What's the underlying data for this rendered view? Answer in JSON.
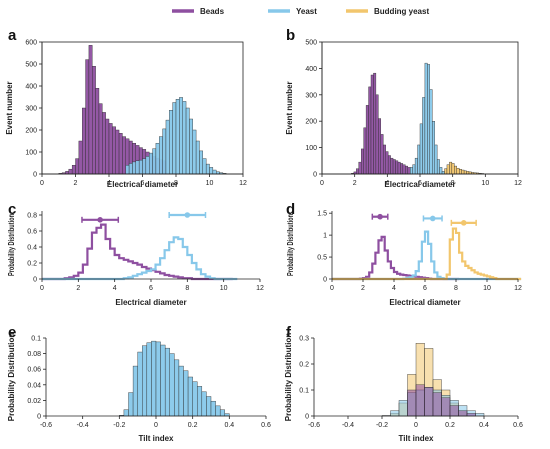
{
  "legend": {
    "items": [
      {
        "label": "Beads",
        "color": "#8e4fa0"
      },
      {
        "label": "Yeast",
        "color": "#87c8ea"
      },
      {
        "label": "Budding yeast",
        "color": "#f2c66d"
      }
    ]
  },
  "chart_data": [
    {
      "panel": "a",
      "type": "bar",
      "xlabel": "Electrical diameter",
      "ylabel": "Event number",
      "xlim": [
        0,
        12
      ],
      "ylim": [
        0,
        600
      ],
      "xticks": [
        0,
        2,
        4,
        6,
        8,
        10,
        12
      ],
      "yticks": [
        0,
        100,
        200,
        300,
        400,
        500,
        600
      ],
      "bin_width": 0.2,
      "series": [
        {
          "name": "Beads",
          "color": "#8e4fa0",
          "x_start": 1.0,
          "values": [
            3,
            6,
            12,
            22,
            40,
            70,
            150,
            300,
            520,
            585,
            490,
            390,
            320,
            280,
            250,
            230,
            215,
            200,
            185,
            170,
            160,
            150,
            140,
            130,
            120,
            112,
            100,
            90,
            80,
            72,
            65,
            60
          ]
        },
        {
          "name": "Yeast",
          "color": "#87c8ea",
          "x_start": 5.0,
          "values": [
            40,
            48,
            55,
            60,
            63,
            70,
            80,
            95,
            115,
            140,
            170,
            205,
            245,
            290,
            325,
            340,
            348,
            330,
            300,
            250,
            200,
            150,
            105,
            70,
            45,
            30,
            18,
            10,
            6,
            3
          ]
        }
      ]
    },
    {
      "panel": "b",
      "type": "bar",
      "xlabel": "Electrical diameter",
      "ylabel": "Event number",
      "xlim": [
        0,
        12
      ],
      "ylim": [
        0,
        500
      ],
      "xticks": [
        0,
        2,
        4,
        6,
        8,
        10,
        12
      ],
      "yticks": [
        0,
        100,
        200,
        300,
        400,
        500
      ],
      "bin_width": 0.15,
      "series": [
        {
          "name": "Beads",
          "color": "#8e4fa0",
          "x_start": 1.8,
          "values": [
            3,
            8,
            20,
            45,
            95,
            175,
            260,
            330,
            375,
            382,
            300,
            210,
            150,
            110,
            85,
            70,
            60,
            55,
            50,
            45,
            40,
            35,
            30,
            25
          ]
        },
        {
          "name": "Yeast",
          "color": "#87c8ea",
          "x_start": 5.4,
          "values": [
            25,
            35,
            60,
            110,
            190,
            290,
            420,
            415,
            320,
            200,
            110,
            55,
            25,
            10
          ]
        },
        {
          "name": "Budding yeast",
          "color": "#f2c66d",
          "x_start": 7.5,
          "values": [
            20,
            35,
            45,
            40,
            30,
            22,
            18,
            15,
            12,
            10,
            8,
            6,
            5,
            4,
            3,
            2
          ]
        }
      ]
    },
    {
      "panel": "c",
      "type": "line",
      "xlabel": "Electrical diameter",
      "ylabel": "Probability Distribution",
      "xlim": [
        0,
        12
      ],
      "ylim": [
        0,
        0.85
      ],
      "xticks": [
        0,
        2,
        4,
        6,
        8,
        10,
        12
      ],
      "yticks": [
        0,
        0.2,
        0.4,
        0.6,
        0.8
      ],
      "step": 0.25,
      "series": [
        {
          "name": "Beads",
          "color": "#8e4fa0",
          "x_start": 0.0,
          "values": [
            0,
            0,
            0,
            0,
            0,
            0.01,
            0.02,
            0.04,
            0.08,
            0.18,
            0.38,
            0.58,
            0.64,
            0.68,
            0.5,
            0.38,
            0.3,
            0.26,
            0.24,
            0.22,
            0.2,
            0.18,
            0.15,
            0.13,
            0.11,
            0.09,
            0.07,
            0.05,
            0.04,
            0.03,
            0.02,
            0.01,
            0.01,
            0,
            0,
            0,
            0,
            0,
            0,
            0,
            0,
            0
          ]
        },
        {
          "name": "Yeast",
          "color": "#87c8ea",
          "x_start": 0.0,
          "values": [
            0,
            0,
            0,
            0,
            0,
            0,
            0,
            0,
            0,
            0,
            0,
            0,
            0,
            0,
            0,
            0,
            0,
            0,
            0.01,
            0.02,
            0.04,
            0.06,
            0.08,
            0.1,
            0.12,
            0.18,
            0.26,
            0.36,
            0.46,
            0.52,
            0.5,
            0.4,
            0.3,
            0.2,
            0.12,
            0.06,
            0.03,
            0.01,
            0,
            0,
            0,
            0,
            0
          ]
        }
      ],
      "errorbars": [
        {
          "color": "#8e4fa0",
          "x": 3.2,
          "xerr": 1.0,
          "y": 0.74
        },
        {
          "color": "#87c8ea",
          "x": 8.0,
          "xerr": 1.0,
          "y": 0.8
        }
      ]
    },
    {
      "panel": "d",
      "type": "line",
      "xlabel": "Electrical diameter",
      "ylabel": "Probability Distribution",
      "xlim": [
        0,
        12
      ],
      "ylim": [
        0,
        1.55
      ],
      "xticks": [
        0,
        2,
        4,
        6,
        8,
        10,
        12
      ],
      "yticks": [
        0,
        0.5,
        1,
        1.5
      ],
      "yticklabels": [
        "0",
        "0.5",
        "1",
        "1.5"
      ],
      "step": 0.2,
      "series": [
        {
          "name": "Beads",
          "color": "#8e4fa0",
          "x_start": 0.0,
          "values": [
            0,
            0,
            0,
            0,
            0,
            0,
            0,
            0,
            0,
            0.01,
            0.02,
            0.05,
            0.15,
            0.35,
            0.6,
            0.88,
            0.96,
            0.65,
            0.4,
            0.25,
            0.16,
            0.12,
            0.1,
            0.09,
            0.08,
            0.07,
            0.06,
            0.05,
            0.04,
            0.03,
            0.02,
            0.01,
            0,
            0,
            0,
            0,
            0,
            0,
            0,
            0,
            0
          ]
        },
        {
          "name": "Yeast",
          "color": "#87c8ea",
          "x_start": 0.0,
          "values": [
            0,
            0,
            0,
            0,
            0,
            0,
            0,
            0,
            0,
            0,
            0,
            0,
            0,
            0,
            0,
            0,
            0,
            0,
            0,
            0,
            0,
            0,
            0,
            0.01,
            0.02,
            0.04,
            0.08,
            0.18,
            0.4,
            0.85,
            1.08,
            0.8,
            0.4,
            0.15,
            0.05,
            0.02,
            0,
            0,
            0,
            0,
            0,
            0,
            0,
            0,
            0,
            0,
            0,
            0,
            0,
            0,
            0,
            0,
            0,
            0,
            0,
            0,
            0,
            0,
            0,
            0,
            0
          ]
        },
        {
          "name": "Budding yeast",
          "color": "#f2c66d",
          "x_start": 0.0,
          "values": [
            0,
            0,
            0,
            0,
            0,
            0,
            0,
            0,
            0,
            0,
            0,
            0,
            0,
            0,
            0,
            0,
            0,
            0,
            0,
            0,
            0,
            0,
            0,
            0,
            0,
            0,
            0,
            0,
            0,
            0,
            0,
            0,
            0,
            0,
            0,
            0,
            0,
            0.1,
            0.9,
            1.15,
            1.05,
            0.6,
            0.4,
            0.3,
            0.25,
            0.2,
            0.15,
            0.12,
            0.1,
            0.08,
            0.06,
            0.04,
            0.02,
            0,
            0,
            0,
            0,
            0,
            0,
            0,
            0
          ]
        }
      ],
      "errorbars": [
        {
          "color": "#8e4fa0",
          "x": 3.1,
          "xerr": 0.5,
          "y": 1.42
        },
        {
          "color": "#87c8ea",
          "x": 6.5,
          "xerr": 0.6,
          "y": 1.38
        },
        {
          "color": "#f2c66d",
          "x": 8.5,
          "xerr": 0.8,
          "y": 1.28
        }
      ]
    },
    {
      "panel": "e",
      "type": "bar",
      "xlabel": "Tilt index",
      "ylabel": "Probability Distribution",
      "xlim": [
        -0.6,
        0.6
      ],
      "ylim": [
        0,
        0.1
      ],
      "xticks": [
        -0.6,
        -0.4,
        -0.2,
        0,
        0.2,
        0.4,
        0.6
      ],
      "yticks": [
        0,
        0.02,
        0.04,
        0.06,
        0.08,
        0.1
      ],
      "yticklabels": [
        "0",
        "0.02",
        "0.04",
        "0.06",
        "0.08",
        "0.1"
      ],
      "bin_width": 0.025,
      "series": [
        {
          "name": "Yeast",
          "color": "#87c8ea",
          "x_start": -0.2,
          "values": [
            0.001,
            0.008,
            0.03,
            0.064,
            0.082,
            0.09,
            0.094,
            0.096,
            0.095,
            0.091,
            0.087,
            0.08,
            0.072,
            0.064,
            0.058,
            0.05,
            0.044,
            0.038,
            0.031,
            0.025,
            0.019,
            0.013,
            0.008,
            0.003
          ]
        }
      ]
    },
    {
      "panel": "f",
      "type": "bar",
      "xlabel": "Tilt index",
      "ylabel": "Probability Distribution",
      "xlim": [
        -0.6,
        0.6
      ],
      "ylim": [
        0,
        0.3
      ],
      "xticks": [
        -0.6,
        -0.4,
        -0.2,
        0,
        0.2,
        0.4,
        0.6
      ],
      "yticks": [
        0,
        0.1,
        0.2,
        0.3
      ],
      "bin_width": 0.05,
      "series": [
        {
          "name": "Budding yeast",
          "color": "#f2c66d",
          "x_start": -0.15,
          "values": [
            0.01,
            0.05,
            0.16,
            0.28,
            0.26,
            0.14,
            0.1,
            0.05,
            0.02
          ]
        },
        {
          "name": "Yeast",
          "color": "#87c8ea",
          "x_start": -0.2,
          "values": [
            0.002,
            0.02,
            0.06,
            0.09,
            0.1,
            0.11,
            0.1,
            0.08,
            0.06,
            0.04,
            0.02,
            0.01
          ]
        },
        {
          "name": "Beads",
          "color": "#8e4fa0",
          "x_start": -0.05,
          "values": [
            0.1,
            0.12,
            0.11,
            0.09,
            0.07,
            0.04,
            0.02,
            0.01
          ]
        }
      ]
    }
  ]
}
